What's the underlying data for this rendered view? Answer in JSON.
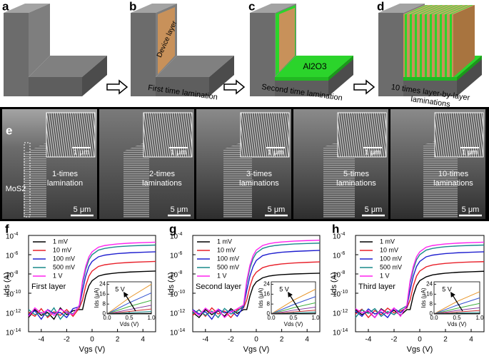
{
  "schematic": {
    "panels": [
      {
        "label": "a"
      },
      {
        "label": "b",
        "layer": "Device layer",
        "caption": [
          "First time lamination"
        ]
      },
      {
        "label": "c",
        "layer": "Al2O3",
        "caption": [
          "Second time lamination"
        ]
      },
      {
        "label": "d",
        "caption": [
          "10 times layer-by-layer",
          "laminations"
        ]
      }
    ]
  },
  "sem": {
    "label": "e",
    "material": "MoS2",
    "images": [
      {
        "label": [
          "1-times",
          "lamination"
        ],
        "scale": "5 μm",
        "inset_scale": "1 μm"
      },
      {
        "label": [
          "2-times",
          "laminations"
        ],
        "scale": "5 μm",
        "inset_scale": "1 μm"
      },
      {
        "label": [
          "3-times",
          "laminations"
        ],
        "scale": "5 μm",
        "inset_scale": "1 μm"
      },
      {
        "label": [
          "5-times",
          "laminations"
        ],
        "scale": "5 μm",
        "inset_scale": "1 μm"
      },
      {
        "label": [
          "10-times",
          "laminations"
        ],
        "scale": "5 μm",
        "inset_scale": "1 μm"
      }
    ]
  },
  "chart_data": [
    {
      "type": "line",
      "panel_label": "f",
      "annotation": "First layer",
      "x_label": "Vgs (V)",
      "y_label": "Ids (A)",
      "log_y": true,
      "legend": "top-left",
      "xlim": [
        -5,
        5
      ],
      "xticks": [
        -4,
        -2,
        0,
        2,
        4
      ],
      "ylim": [
        1e-14,
        0.0001
      ],
      "yticks": [
        {
          "value": 1e-14,
          "label": "10",
          "sup": "-14"
        },
        {
          "value": 1e-12,
          "label": "10",
          "sup": "-12"
        },
        {
          "value": 1e-10,
          "label": "10",
          "sup": "-10"
        },
        {
          "value": 1e-08,
          "label": "10",
          "sup": "-8"
        },
        {
          "value": 1e-06,
          "label": "10",
          "sup": "-6"
        },
        {
          "value": 0.0001,
          "label": "10",
          "sup": "-4"
        }
      ],
      "x": [
        -5,
        -4.5,
        -4,
        -3.5,
        -3,
        -2.5,
        -2,
        -1.5,
        -1,
        -0.75,
        -0.5,
        -0.25,
        0,
        0.5,
        1,
        1.5,
        2,
        3,
        4,
        5
      ],
      "series": [
        {
          "name": "1 mV",
          "color": "#000000",
          "values": [
            3e-13,
            2e-12,
            5e-13,
            1e-12,
            2e-13,
            3e-12,
            6e-13,
            1.5e-12,
            2e-12,
            2e-12,
            6e-11,
            6e-10,
            2e-09,
            6e-09,
            9e-09,
            1.1e-08,
            1.3e-08,
            1.6e-08,
            1.8e-08,
            2e-08
          ]
        },
        {
          "name": "10 mV",
          "color": "#e8202a",
          "values": [
            1e-12,
            4e-13,
            2.5e-12,
            3e-13,
            1.2e-12,
            5e-13,
            2e-12,
            4e-13,
            3e-12,
            2e-11,
            6e-10,
            6e-09,
            2e-08,
            6e-08,
            9e-08,
            1.1e-07,
            1.3e-07,
            1.6e-07,
            1.8e-07,
            2e-07
          ]
        },
        {
          "name": "100 mV",
          "color": "#1f1fcf",
          "values": [
            6e-13,
            1.5e-12,
            2e-13,
            2e-12,
            8e-13,
            1e-12,
            3e-13,
            2.5e-12,
            4e-12,
            2e-10,
            6e-09,
            6e-08,
            2e-07,
            6e-07,
            9e-07,
            1.1e-06,
            1.3e-06,
            1.6e-06,
            1.8e-06,
            2e-06
          ]
        },
        {
          "name": "500 mV",
          "color": "#1a8a8a",
          "values": [
            2e-12,
            6e-13,
            1e-12,
            4e-13,
            3e-12,
            2e-13,
            1.2e-12,
            7e-13,
            5e-12,
            1e-09,
            3e-08,
            3e-07,
            1e-06,
            3e-06,
            4.5e-06,
            5.7e-06,
            6.7e-06,
            8.2e-06,
            9.2e-06,
            1e-05
          ]
        },
        {
          "name": "1 V",
          "color": "#ff22ee",
          "values": [
            4e-13,
            3e-12,
            8e-13,
            1.8e-12,
            5e-13,
            2.2e-12,
            1e-12,
            6e-13,
            6e-12,
            2e-09,
            6e-08,
            6e-07,
            2e-06,
            6e-06,
            9e-06,
            1.1e-05,
            1.3e-05,
            1.6e-05,
            1.8e-05,
            2e-05
          ]
        }
      ],
      "inset": {
        "type": "line",
        "x_label": "Vds (V)",
        "y_label": "Ids (μA)",
        "annotation": "5 V",
        "xlim": [
          0,
          1
        ],
        "xticks": [
          {
            "value": 0,
            "label": "0.0"
          },
          {
            "value": 0.5,
            "label": "0.5"
          },
          {
            "value": 1,
            "label": "1.0"
          }
        ],
        "ylim": [
          0,
          26
        ],
        "yticks": [
          0,
          8,
          16,
          24
        ],
        "x": [
          0,
          0.5,
          1
        ],
        "series": [
          {
            "color": "#e8962a",
            "values": [
              0,
              13,
              24
            ]
          },
          {
            "color": "#3050d0",
            "values": [
              0,
              9,
              17
            ]
          },
          {
            "color": "#40b040",
            "values": [
              0,
              6,
              11
            ]
          },
          {
            "color": "#8a3aa0",
            "values": [
              0,
              3.5,
              7
            ]
          },
          {
            "color": "#d03030",
            "values": [
              0,
              2,
              4
            ]
          },
          {
            "color": "#1a8a8a",
            "values": [
              0,
              1,
              2
            ]
          },
          {
            "color": "#000000",
            "values": [
              0,
              0.3,
              0.5
            ]
          }
        ]
      }
    },
    {
      "type": "line",
      "panel_label": "g",
      "annotation": "Second layer",
      "x_label": "Vgs (V)",
      "y_label": "Ids (A)",
      "log_y": true,
      "legend": "top-left",
      "xlim": [
        -5,
        5
      ],
      "xticks": [
        -4,
        -2,
        0,
        2,
        4
      ],
      "ylim": [
        1e-14,
        0.0001
      ],
      "yticks": [
        {
          "value": 1e-14,
          "label": "10",
          "sup": "-14"
        },
        {
          "value": 1e-12,
          "label": "10",
          "sup": "-12"
        },
        {
          "value": 1e-10,
          "label": "10",
          "sup": "-10"
        },
        {
          "value": 1e-08,
          "label": "10",
          "sup": "-8"
        },
        {
          "value": 1e-06,
          "label": "10",
          "sup": "-6"
        },
        {
          "value": 0.0001,
          "label": "10",
          "sup": "-4"
        }
      ],
      "x": [
        -5,
        -4.5,
        -4,
        -3.5,
        -3,
        -2.5,
        -2,
        -1.5,
        -1,
        -0.75,
        -0.5,
        -0.25,
        0,
        0.5,
        1,
        1.5,
        2,
        3,
        4,
        5
      ],
      "series": [
        {
          "name": "1 mV",
          "color": "#000000",
          "values": [
            1e-12,
            3e-13,
            2e-12,
            6e-13,
            1.5e-12,
            4e-13,
            2.5e-12,
            8e-13,
            2e-12,
            2e-12,
            5e-11,
            5e-10,
            1.5e-09,
            4e-09,
            6e-09,
            7.5e-09,
            8.5e-09,
            1e-08,
            1.1e-08,
            1.2e-08
          ]
        },
        {
          "name": "10 mV",
          "color": "#e8202a",
          "values": [
            5e-13,
            2e-12,
            4e-13,
            3e-12,
            7e-13,
            1.4e-12,
            3e-13,
            2e-12,
            3e-12,
            2e-11,
            5e-10,
            5e-09,
            1.5e-08,
            4.5e-08,
            7e-08,
            9e-08,
            1.1e-07,
            1.4e-07,
            1.6e-07,
            1.8e-07
          ]
        },
        {
          "name": "100 mV",
          "color": "#1f1fcf",
          "values": [
            2e-12,
            7e-13,
            1.2e-12,
            2e-13,
            2.2e-12,
            9e-13,
            1.6e-12,
            4e-13,
            4e-12,
            2e-10,
            6e-09,
            6e-08,
            2.5e-07,
            8e-07,
            1.2e-06,
            1.5e-06,
            1.8e-06,
            2.2e-06,
            2.5e-06,
            2.8e-06
          ]
        },
        {
          "name": "500 mV",
          "color": "#1a8a8a",
          "values": [
            8e-13,
            1.8e-12,
            5e-13,
            1.4e-12,
            3e-13,
            2.6e-12,
            7e-13,
            1.3e-12,
            5e-12,
            1e-09,
            4e-08,
            4e-07,
            1.5e-06,
            4.5e-06,
            7e-06,
            9e-06,
            1.05e-05,
            1.3e-05,
            1.45e-05,
            1.6e-05
          ]
        },
        {
          "name": "1 V",
          "color": "#ff22ee",
          "values": [
            1.6e-12,
            5e-13,
            2.8e-12,
            9e-13,
            2e-12,
            3e-13,
            1.1e-12,
            2.4e-12,
            6e-12,
            2e-09,
            8e-08,
            8e-07,
            3e-06,
            9e-06,
            1.4e-05,
            1.8e-05,
            2.1e-05,
            2.6e-05,
            2.9e-05,
            3.2e-05
          ]
        }
      ],
      "inset": {
        "type": "line",
        "x_label": "Vds (V)",
        "y_label": "Ids (μA)",
        "annotation": "5 V",
        "xlim": [
          0,
          1
        ],
        "xticks": [
          {
            "value": 0,
            "label": "0.0"
          },
          {
            "value": 0.5,
            "label": "0.5"
          },
          {
            "value": 1,
            "label": "1.0"
          }
        ],
        "ylim": [
          0,
          26
        ],
        "yticks": [
          0,
          8,
          16,
          24
        ],
        "x": [
          0,
          0.5,
          1
        ],
        "series": [
          {
            "color": "#e8962a",
            "values": [
              0,
              11,
              20
            ]
          },
          {
            "color": "#3050d0",
            "values": [
              0,
              7.5,
              14
            ]
          },
          {
            "color": "#40b040",
            "values": [
              0,
              5,
              9
            ]
          },
          {
            "color": "#8a3aa0",
            "values": [
              0,
              3,
              5.5
            ]
          },
          {
            "color": "#d03030",
            "values": [
              0,
              1.6,
              3
            ]
          },
          {
            "color": "#1a8a8a",
            "values": [
              0,
              0.8,
              1.5
            ]
          },
          {
            "color": "#000000",
            "values": [
              0,
              0.2,
              0.4
            ]
          }
        ]
      }
    },
    {
      "type": "line",
      "panel_label": "h",
      "annotation": "Third layer",
      "x_label": "Vgs (V)",
      "y_label": "Ids (A)",
      "log_y": true,
      "legend": "top-left",
      "xlim": [
        -5,
        5
      ],
      "xticks": [
        -4,
        -2,
        0,
        2,
        4
      ],
      "ylim": [
        1e-14,
        0.0001
      ],
      "yticks": [
        {
          "value": 1e-14,
          "label": "10",
          "sup": "-14"
        },
        {
          "value": 1e-12,
          "label": "10",
          "sup": "-12"
        },
        {
          "value": 1e-10,
          "label": "10",
          "sup": "-10"
        },
        {
          "value": 1e-08,
          "label": "10",
          "sup": "-8"
        },
        {
          "value": 1e-06,
          "label": "10",
          "sup": "-6"
        },
        {
          "value": 0.0001,
          "label": "10",
          "sup": "-4"
        }
      ],
      "x": [
        -5,
        -4.5,
        -4,
        -3.5,
        -3,
        -2.5,
        -2,
        -1.5,
        -1,
        -0.75,
        -0.5,
        -0.25,
        0,
        0.5,
        1,
        1.5,
        2,
        3,
        4,
        5
      ],
      "series": [
        {
          "name": "1 mV",
          "color": "#000000",
          "values": [
            2e-12,
            6e-13,
            1.3e-12,
            3e-13,
            2.4e-12,
            8e-13,
            1.7e-12,
            5e-13,
            2e-12,
            2e-12,
            6e-11,
            6e-10,
            2e-09,
            5e-09,
            8e-09,
            1e-08,
            1.2e-08,
            1.5e-08,
            1.7e-08,
            1.9e-08
          ]
        },
        {
          "name": "10 mV",
          "color": "#e8202a",
          "values": [
            7e-13,
            2.2e-12,
            3e-13,
            1.6e-12,
            6e-13,
            2.8e-12,
            9e-13,
            1.4e-12,
            3e-12,
            2e-11,
            6e-10,
            6e-09,
            2e-08,
            5.5e-08,
            8.5e-08,
            1.05e-07,
            1.25e-07,
            1.55e-07,
            1.75e-07,
            1.9e-07
          ]
        },
        {
          "name": "100 mV",
          "color": "#1f1fcf",
          "values": [
            1.4e-12,
            4e-13,
            2.3e-12,
            7e-13,
            1.1e-12,
            3e-13,
            2.7e-12,
            9e-13,
            4e-12,
            2e-10,
            6e-09,
            6e-08,
            2e-07,
            6e-07,
            9e-07,
            1.1e-06,
            1.3e-06,
            1.6e-06,
            1.8e-06,
            2e-06
          ]
        },
        {
          "name": "500 mV",
          "color": "#1a8a8a",
          "values": [
            3e-13,
            1.9e-12,
            8e-13,
            2.5e-12,
            4e-13,
            1.3e-12,
            6e-13,
            2.1e-12,
            5e-12,
            1e-09,
            3e-08,
            3e-07,
            1e-06,
            3e-06,
            4.5e-06,
            5.7e-06,
            6.7e-06,
            8.2e-06,
            9.2e-06,
            1e-05
          ]
        },
        {
          "name": "1 V",
          "color": "#ff22ee",
          "values": [
            2.5e-12,
            9e-13,
            1.5e-12,
            3e-13,
            2e-12,
            7e-13,
            3e-12,
            4e-13,
            6e-12,
            2e-09,
            6e-08,
            6e-07,
            2e-06,
            6e-06,
            9e-06,
            1.1e-05,
            1.3e-05,
            1.6e-05,
            1.8e-05,
            2e-05
          ]
        }
      ],
      "inset": {
        "type": "line",
        "x_label": "Vds (V)",
        "y_label": "Ids (μA)",
        "annotation": "5 V",
        "xlim": [
          0,
          1
        ],
        "xticks": [
          {
            "value": 0,
            "label": "0.0"
          },
          {
            "value": 0.5,
            "label": "0.5"
          },
          {
            "value": 1,
            "label": "1.0"
          }
        ],
        "ylim": [
          0,
          26
        ],
        "yticks": [
          0,
          8,
          16,
          24
        ],
        "x": [
          0,
          0.5,
          1
        ],
        "series": [
          {
            "color": "#e8962a",
            "values": [
              0,
              10,
              18
            ]
          },
          {
            "color": "#3050d0",
            "values": [
              0,
              7,
              13
            ]
          },
          {
            "color": "#40b040",
            "values": [
              0,
              4.5,
              8.5
            ]
          },
          {
            "color": "#8a3aa0",
            "values": [
              0,
              2.8,
              5
            ]
          },
          {
            "color": "#d03030",
            "values": [
              0,
              1.5,
              2.8
            ]
          },
          {
            "color": "#1a8a8a",
            "values": [
              0,
              0.7,
              1.3
            ]
          },
          {
            "color": "#000000",
            "values": [
              0,
              0.2,
              0.3
            ]
          }
        ]
      }
    }
  ]
}
